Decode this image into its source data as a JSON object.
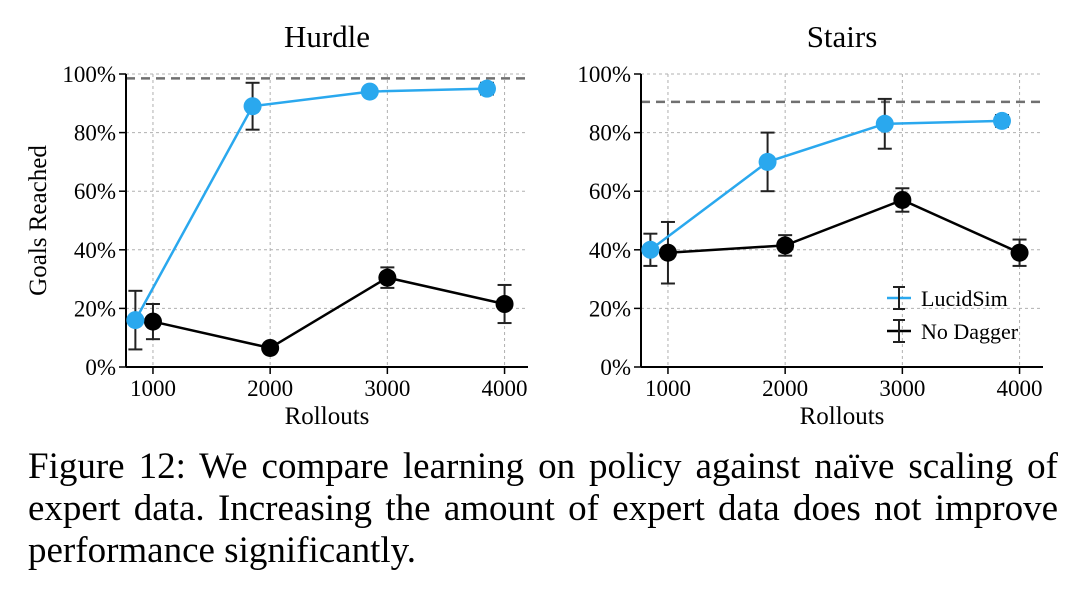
{
  "chart_data": [
    {
      "type": "line",
      "title": "Hurdle",
      "xlabel": "Rollouts",
      "ylabel": "Goals Reached",
      "xlim": [
        770,
        4200
      ],
      "ylim": [
        0,
        100
      ],
      "x_ticks": [
        1000,
        2000,
        3000,
        4000
      ],
      "y_ticks": [
        0,
        20,
        40,
        60,
        80,
        100
      ],
      "y_tick_labels": [
        "0%",
        "20%",
        "40%",
        "60%",
        "80%",
        "100%"
      ],
      "grid": true,
      "reference_line": {
        "y": 98.5,
        "style": "dashed",
        "color": "#707070"
      },
      "series": [
        {
          "name": "LucidSim",
          "color": "#2aa8ee",
          "x": [
            850,
            1850,
            2850,
            3850
          ],
          "y": [
            16,
            89,
            94,
            95
          ],
          "err": [
            10,
            8,
            1.5,
            2
          ]
        },
        {
          "name": "No Dagger",
          "color": "#000000",
          "x": [
            1000,
            2000,
            3000,
            4000
          ],
          "y": [
            15.5,
            6.5,
            30.5,
            21.5
          ],
          "err": [
            6,
            1.5,
            3.5,
            6.5
          ]
        }
      ]
    },
    {
      "type": "line",
      "title": "Stairs",
      "xlabel": "Rollouts",
      "ylabel": "",
      "xlim": [
        770,
        4200
      ],
      "ylim": [
        0,
        100
      ],
      "x_ticks": [
        1000,
        2000,
        3000,
        4000
      ],
      "y_ticks": [
        0,
        20,
        40,
        60,
        80,
        100
      ],
      "y_tick_labels": [
        "0%",
        "20%",
        "40%",
        "60%",
        "80%",
        "100%"
      ],
      "grid": true,
      "legend": "bottom-right",
      "reference_line": {
        "y": 90.5,
        "style": "dashed",
        "color": "#707070"
      },
      "series": [
        {
          "name": "LucidSim",
          "color": "#2aa8ee",
          "x": [
            850,
            1850,
            2850,
            3850
          ],
          "y": [
            40,
            70,
            83,
            84
          ],
          "err": [
            5.5,
            10,
            8.5,
            2
          ]
        },
        {
          "name": "No Dagger",
          "color": "#000000",
          "x": [
            1000,
            2000,
            3000,
            4000
          ],
          "y": [
            39,
            41.5,
            57,
            39
          ],
          "err": [
            10.5,
            3.5,
            4,
            4.5
          ]
        }
      ]
    }
  ],
  "caption": "Figure 12:  We compare learning on policy against naïve scaling of expert data. Increasing the amount of expert data does not improve performance significantly."
}
